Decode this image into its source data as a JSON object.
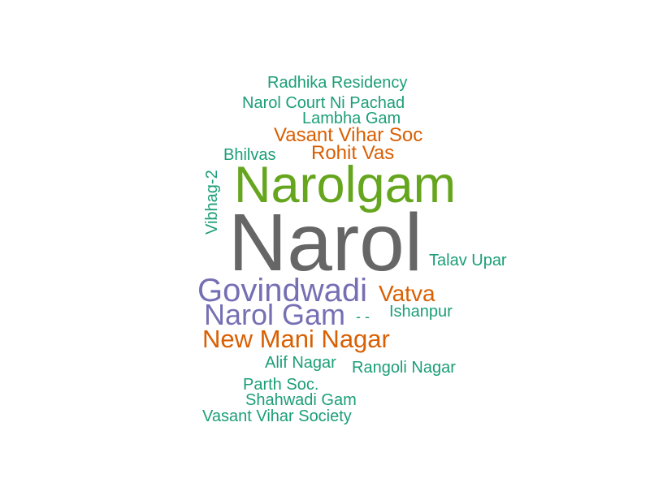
{
  "words": [
    {
      "text": "Radhika Residency",
      "color": "#1b9e77"
    },
    {
      "text": "Narol Court Ni Pachad",
      "color": "#1b9e77"
    },
    {
      "text": "Lambha Gam",
      "color": "#1b9e77"
    },
    {
      "text": "Vasant Vihar Soc",
      "color": "#d95f02"
    },
    {
      "text": "Bhilvas",
      "color": "#1b9e77"
    },
    {
      "text": "Rohit Vas",
      "color": "#d95f02"
    },
    {
      "text": "Narolgam",
      "color": "#66a61e"
    },
    {
      "text": "Vibhag-2",
      "color": "#1b9e77"
    },
    {
      "text": "Narol",
      "color": "#666666"
    },
    {
      "text": "Talav Upar",
      "color": "#1b9e77"
    },
    {
      "text": "Govindwadi",
      "color": "#7570b3"
    },
    {
      "text": "Vatva",
      "color": "#d95f02"
    },
    {
      "text": "Narol Gam",
      "color": "#7570b3"
    },
    {
      "text": "- -",
      "color": "#1b9e77"
    },
    {
      "text": "Ishanpur",
      "color": "#1b9e77"
    },
    {
      "text": "New Mani Nagar",
      "color": "#d95f02"
    },
    {
      "text": "Alif Nagar",
      "color": "#1b9e77"
    },
    {
      "text": "Rangoli Nagar",
      "color": "#1b9e77"
    },
    {
      "text": "Parth Soc.",
      "color": "#1b9e77"
    },
    {
      "text": "Shahwadi Gam",
      "color": "#1b9e77"
    },
    {
      "text": "Vasant Vihar Society",
      "color": "#1b9e77"
    }
  ]
}
